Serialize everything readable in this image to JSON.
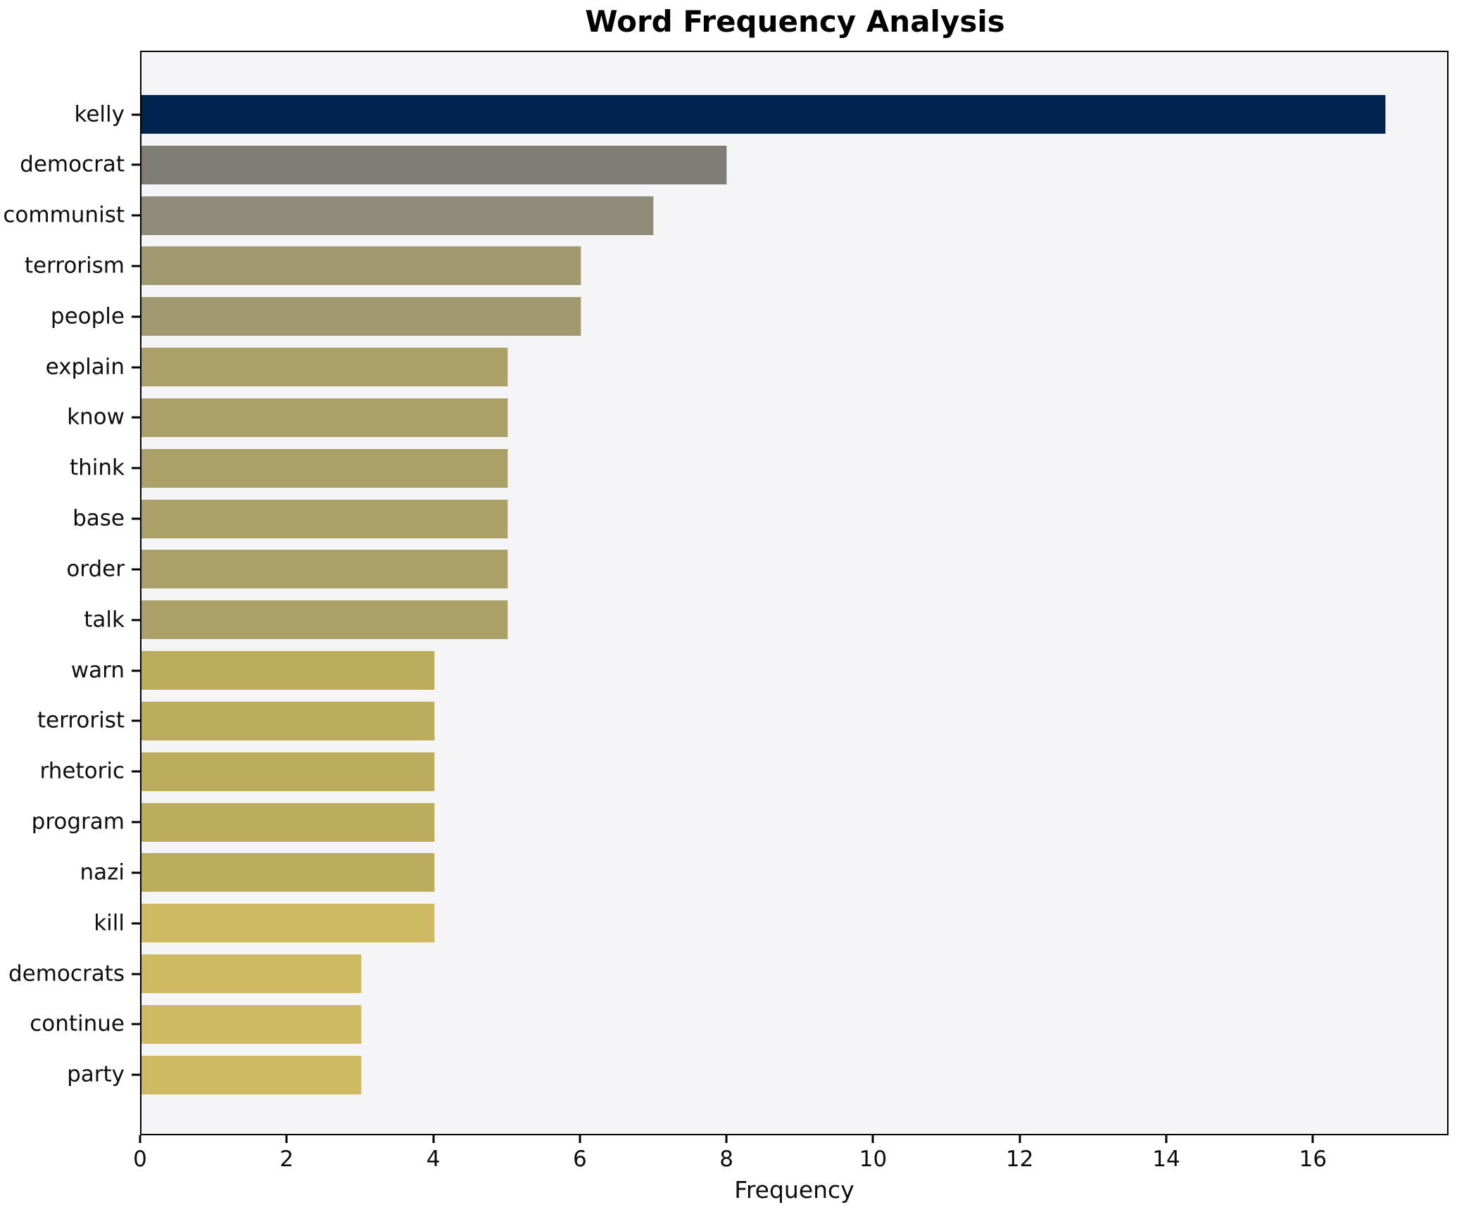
{
  "chart_data": {
    "type": "bar",
    "orientation": "horizontal",
    "title": "Word Frequency Analysis",
    "xlabel": "Frequency",
    "ylabel": "",
    "categories": [
      "kelly",
      "democrat",
      "communist",
      "terrorism",
      "people",
      "explain",
      "know",
      "think",
      "base",
      "order",
      "talk",
      "warn",
      "terrorist",
      "rhetoric",
      "program",
      "nazi",
      "kill",
      "democrats",
      "continue",
      "party"
    ],
    "values": [
      17,
      8,
      7,
      6,
      6,
      5,
      5,
      5,
      5,
      5,
      5,
      4,
      4,
      4,
      4,
      4,
      4,
      3,
      3,
      3
    ],
    "bar_colors": [
      "#02234e",
      "#7f7c75",
      "#908b78",
      "#a19970",
      "#a19970",
      "#aaa168",
      "#aaa168",
      "#aaa168",
      "#aaa168",
      "#aaa168",
      "#aaa168",
      "#bcac5e",
      "#bcac5e",
      "#bcac5e",
      "#bcac5e",
      "#bcac5e",
      "#ccb961",
      "#ccb961",
      "#ccb961",
      "#ccb961"
    ],
    "xlim": [
      0,
      17.85
    ],
    "xticks": [
      0,
      2,
      4,
      6,
      8,
      10,
      12,
      14,
      16
    ],
    "grid": false,
    "legend": false,
    "plot_bg": "#f5f5f7",
    "figure_bg": "#ffffff",
    "spine_color": "#000000"
  }
}
